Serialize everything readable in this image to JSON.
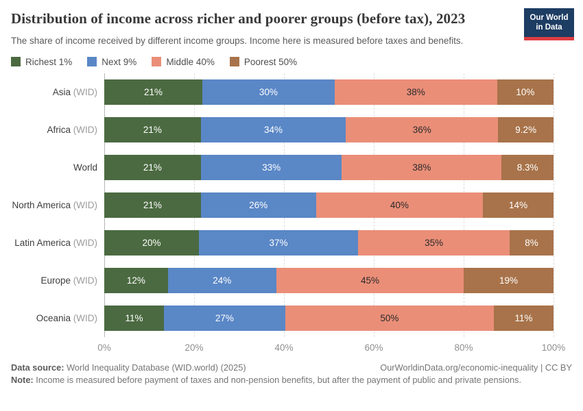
{
  "header": {
    "title": "Distribution of income across richer and poorer groups (before tax), 2023",
    "subtitle": "The share of income received by different income groups. Income here is measured before taxes and benefits."
  },
  "logo": {
    "line1": "Our World",
    "line2": "in Data",
    "bg_color": "#1d3d63",
    "accent_color": "#dc3e42"
  },
  "chart_data": {
    "type": "bar",
    "orientation": "horizontal",
    "stacked": true,
    "unit": "%",
    "xlim": [
      0,
      100
    ],
    "grid": "vertical-dashed",
    "legend_position": "top",
    "x_ticks": [
      "0%",
      "20%",
      "40%",
      "60%",
      "80%",
      "100%"
    ],
    "categories": [
      {
        "name": "Asia",
        "suffix": " (WID)"
      },
      {
        "name": "Africa",
        "suffix": " (WID)"
      },
      {
        "name": "World",
        "suffix": ""
      },
      {
        "name": "North America",
        "suffix": " (WID)"
      },
      {
        "name": "Latin America",
        "suffix": " (WID)"
      },
      {
        "name": "Europe",
        "suffix": " (WID)"
      },
      {
        "name": "Oceania",
        "suffix": " (WID)"
      }
    ],
    "series": [
      {
        "name": "Richest 1%",
        "color": "#4b6a41",
        "label_color": "#ffffff",
        "values": [
          21,
          21,
          21,
          21,
          20,
          12,
          11
        ],
        "labels": [
          "21%",
          "21%",
          "21%",
          "21%",
          "20%",
          "12%",
          "11%"
        ]
      },
      {
        "name": "Next 9%",
        "color": "#5a87c6",
        "label_color": "#ffffff",
        "values": [
          30,
          34,
          33,
          26,
          37,
          24,
          27
        ],
        "labels": [
          "30%",
          "34%",
          "33%",
          "26%",
          "37%",
          "24%",
          "27%"
        ]
      },
      {
        "name": "Middle 40%",
        "color": "#ea8e78",
        "label_color": "#2a2a2a",
        "values": [
          38,
          36,
          38,
          40,
          35,
          45,
          50
        ],
        "labels": [
          "38%",
          "36%",
          "38%",
          "40%",
          "35%",
          "45%",
          "50%"
        ]
      },
      {
        "name": "Poorest 50%",
        "color": "#a8734a",
        "label_color": "#ffffff",
        "values": [
          10,
          9.2,
          8.3,
          14,
          8,
          19,
          11
        ],
        "labels": [
          "10%",
          "9.2%",
          "8.3%",
          "14%",
          "8%",
          "19%",
          "11%"
        ]
      }
    ]
  },
  "footer": {
    "datasource_label": "Data source:",
    "datasource_text": " World Inequality Database (WID.world) (2025)",
    "credit": "OurWorldinData.org/economic-inequality | CC BY",
    "note_label": "Note:",
    "note_text": " Income is measured before payment of taxes and non-pension benefits, but after the payment of public and private pensions."
  }
}
